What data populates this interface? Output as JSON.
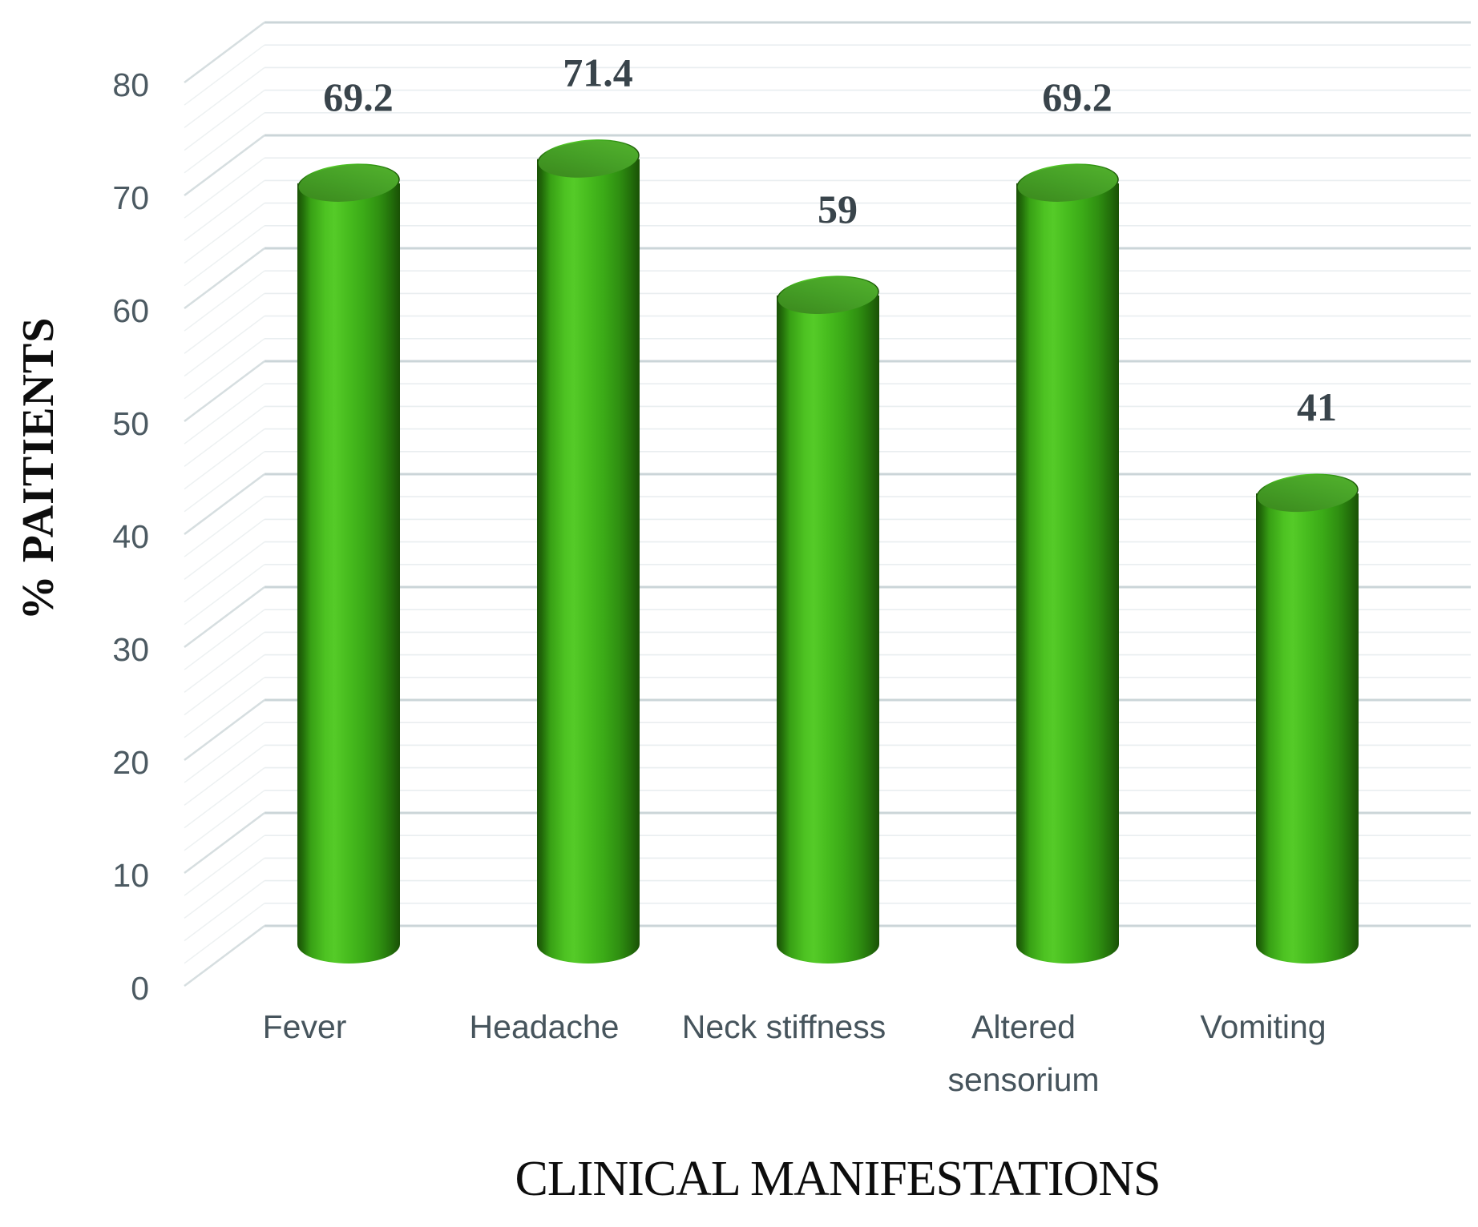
{
  "chart_data": {
    "type": "bar",
    "subtype": "3d-cylinder",
    "title": "",
    "xlabel": "CLINICAL MANIFESTATIONS",
    "ylabel": "% PAITIENTS",
    "categories": [
      "Fever",
      "Headache",
      "Neck stiffness",
      "Altered\nsensorium",
      "Vomiting"
    ],
    "values": [
      69.2,
      71.4,
      59,
      69.2,
      41
    ],
    "data_labels": [
      "69.2",
      "71.4",
      "59",
      "69.2",
      "41"
    ],
    "ylim": [
      0,
      80
    ],
    "yticks": [
      0,
      10,
      20,
      30,
      40,
      50,
      60,
      70,
      80
    ],
    "minor_unit": 2,
    "grid": true,
    "legend": false,
    "colors": {
      "bar_main": "#3FAE1A",
      "bar_highlight": "#55CB28",
      "bar_shadow": "#1A5106",
      "bar_top_face": "#459F26",
      "value_label": "#39444B",
      "tick_label": "#4C5A62",
      "category_label": "#46545C",
      "major_gridline": "#CBD5D8",
      "minor_gridline": "#E9EEF0",
      "axis_title": "#0D0D0D",
      "background": "#FFFFFF"
    }
  }
}
